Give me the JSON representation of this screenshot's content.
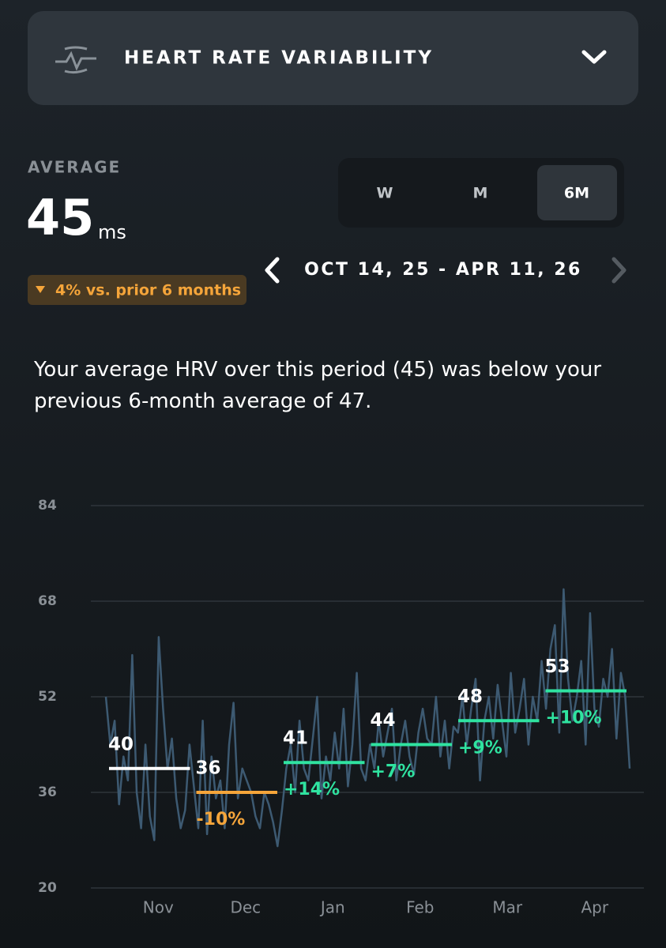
{
  "header": {
    "title": "HEART RATE VARIABILITY"
  },
  "summary": {
    "label": "AVERAGE",
    "value": "45",
    "unit": "ms",
    "comparison": "4% vs. prior 6 months"
  },
  "tabs": [
    "W",
    "M",
    "6M"
  ],
  "selected_tab": "6M",
  "date_range": "OCT 14, 25 - APR 11, 26",
  "description": "Your average HRV over this period (45) was below your previous 6-month average of 47.",
  "chart_data": {
    "type": "line",
    "ylim": [
      20,
      84
    ],
    "yticks": [
      20,
      36,
      52,
      68,
      84
    ],
    "grid": true,
    "x_labels": [
      "Nov",
      "Dec",
      "Jan",
      "Feb",
      "Mar",
      "Apr"
    ],
    "line": {
      "color": "#3d5a72",
      "values": [
        52,
        44,
        48,
        34,
        42,
        38,
        59,
        36,
        30,
        44,
        32,
        28,
        62,
        50,
        40,
        45,
        35,
        30,
        33,
        44,
        37,
        30,
        48,
        29,
        42,
        35,
        38,
        30,
        44,
        51,
        35,
        40,
        38,
        36,
        32,
        30,
        36,
        34,
        31,
        27,
        33,
        40,
        44,
        36,
        48,
        40,
        38,
        45,
        52,
        35,
        42,
        38,
        46,
        40,
        50,
        37,
        44,
        56,
        40,
        38,
        44,
        40,
        48,
        42,
        46,
        50,
        38,
        44,
        48,
        42,
        39,
        46,
        50,
        45,
        44,
        52,
        42,
        48,
        40,
        47,
        46,
        52,
        44,
        50,
        55,
        38,
        48,
        52,
        45,
        54,
        48,
        42,
        56,
        46,
        50,
        55,
        44,
        52,
        48,
        58,
        50,
        60,
        64,
        46,
        70,
        55,
        48,
        52,
        58,
        44,
        66,
        50,
        47,
        55,
        52,
        60,
        45,
        56,
        52,
        40
      ]
    },
    "averages": {
      "values": [
        40,
        36,
        41,
        44,
        48,
        53
      ],
      "changes": [
        null,
        -10,
        14,
        7,
        9,
        10
      ],
      "change_labels": [
        null,
        "-10%",
        "+14%",
        "+7%",
        "+9%",
        "+10%"
      ],
      "colors": {
        "neutral": "#ffffff",
        "down": "#f5a53a",
        "up": "#2fe3a0"
      }
    }
  }
}
